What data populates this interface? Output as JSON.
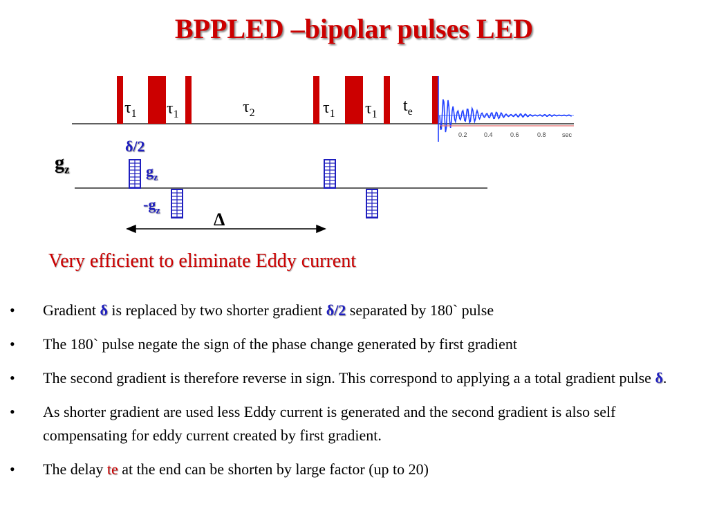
{
  "title": "BPPLED –bipolar pulses LED",
  "diagram": {
    "tau1": "τ",
    "tau1_sub": "1",
    "tau2": "τ",
    "tau2_sub": "2",
    "te": "t",
    "te_sub": "e",
    "half_delta": "δ/2",
    "gz_axis": "g",
    "gz_axis_sub": "z",
    "gz_pos": "g",
    "gz_pos_sub": "z",
    "gz_neg": "-g",
    "gz_neg_sub": "z",
    "big_delta": "Δ",
    "fid_ticks": [
      "0.2",
      "0.4",
      "0.6",
      "0.8",
      "sec"
    ]
  },
  "subtitle": "Very efficient to eliminate Eddy current",
  "bullets": [
    {
      "parts": [
        {
          "text": "Gradient ",
          "style": "plain"
        },
        {
          "text": "δ",
          "style": "blue"
        },
        {
          "text": " is replaced by two shorter gradient ",
          "style": "plain"
        },
        {
          "text": "δ/2",
          "style": "blue"
        },
        {
          "text": " separated by 180` pulse",
          "style": "plain"
        }
      ]
    },
    {
      "parts": [
        {
          "text": "The 180` pulse negate the sign of the phase change generated by first gradient",
          "style": "plain"
        }
      ]
    },
    {
      "parts": [
        {
          "text": "The second gradient is therefore reverse in sign. This correspond to applying a a total gradient pulse ",
          "style": "plain"
        },
        {
          "text": "δ",
          "style": "blue"
        },
        {
          "text": ".",
          "style": "plain"
        }
      ]
    },
    {
      "parts": [
        {
          "text": "As shorter gradient are used less Eddy current is generated and the second gradient is also self compensating for eddy current created by first gradient.",
          "style": "plain"
        }
      ]
    },
    {
      "parts": [
        {
          "text": "The delay ",
          "style": "plain"
        },
        {
          "text": "te",
          "style": "red"
        },
        {
          "text": " at the end can be shorten by large factor (up to 20)",
          "style": "plain"
        }
      ]
    }
  ],
  "bullet_symbol": "•",
  "colors": {
    "title": "#cc0000",
    "pulse": "#cc0000",
    "gradient": "#1f1fbf",
    "fid": "#1f3fff",
    "axis": "#000000"
  }
}
